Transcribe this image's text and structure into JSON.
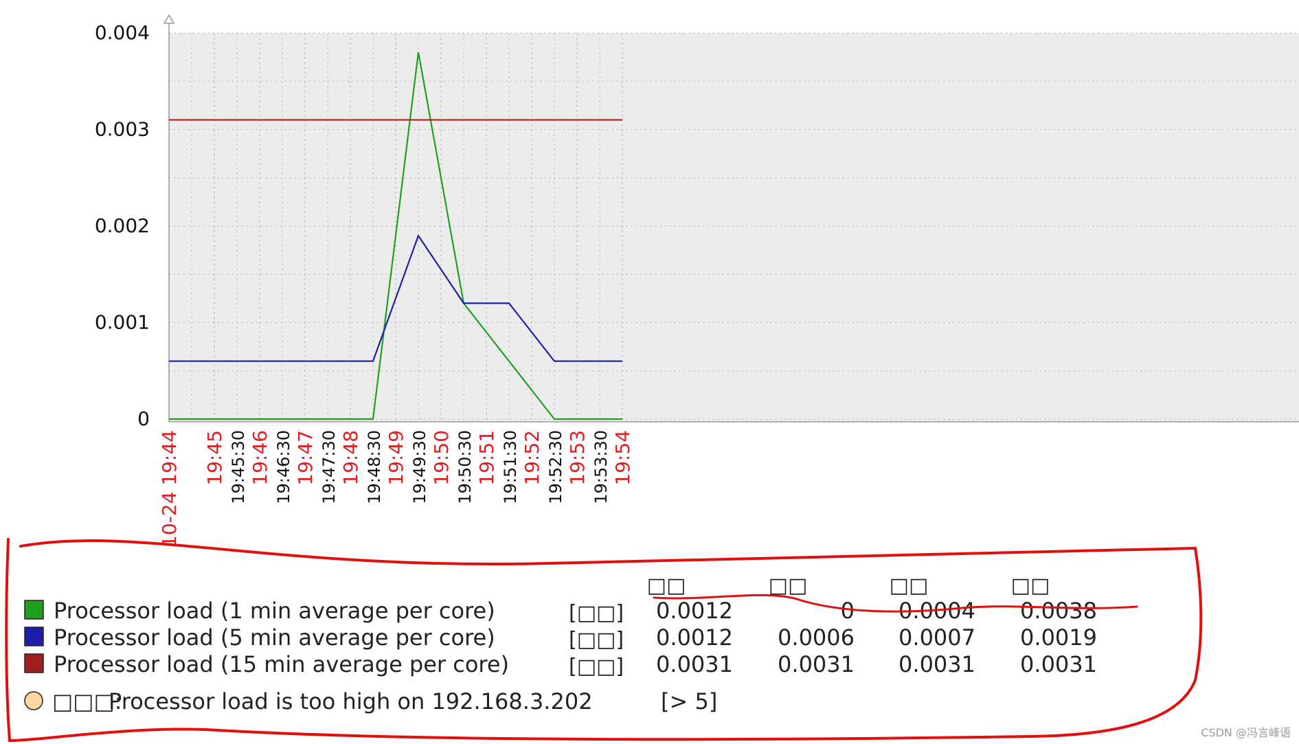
{
  "chart_data": {
    "type": "line",
    "title": "",
    "xlabel": "",
    "ylabel": "",
    "ylim": [
      0,
      0.004
    ],
    "y_ticks": [
      "0",
      "0.001",
      "0.002",
      "0.003",
      "0.004"
    ],
    "x_start": "19:44",
    "x_end": "19:54",
    "x_ticks": [
      {
        "label": "10-24 19:44",
        "t": "19:44:00",
        "style": "major"
      },
      {
        "label": "19:45",
        "t": "19:45:00",
        "style": "major"
      },
      {
        "label": "19:45:30",
        "t": "19:45:30",
        "style": "minor"
      },
      {
        "label": "19:46",
        "t": "19:46:00",
        "style": "major"
      },
      {
        "label": "19:46:30",
        "t": "19:46:30",
        "style": "minor"
      },
      {
        "label": "19:47",
        "t": "19:47:00",
        "style": "major"
      },
      {
        "label": "19:47:30",
        "t": "19:47:30",
        "style": "minor"
      },
      {
        "label": "19:48",
        "t": "19:48:00",
        "style": "major"
      },
      {
        "label": "19:48:30",
        "t": "19:48:30",
        "style": "minor"
      },
      {
        "label": "19:49",
        "t": "19:49:00",
        "style": "major"
      },
      {
        "label": "19:49:30",
        "t": "19:49:30",
        "style": "minor"
      },
      {
        "label": "19:50",
        "t": "19:50:00",
        "style": "major"
      },
      {
        "label": "19:50:30",
        "t": "19:50:30",
        "style": "minor"
      },
      {
        "label": "19:51",
        "t": "19:51:00",
        "style": "major"
      },
      {
        "label": "19:51:30",
        "t": "19:51:30",
        "style": "minor"
      },
      {
        "label": "19:52",
        "t": "19:52:00",
        "style": "major"
      },
      {
        "label": "19:52:30",
        "t": "19:52:30",
        "style": "minor"
      },
      {
        "label": "19:53",
        "t": "19:53:00",
        "style": "major"
      },
      {
        "label": "19:53:30",
        "t": "19:53:30",
        "style": "minor"
      },
      {
        "label": "19:54",
        "t": "19:54:00",
        "style": "major"
      }
    ],
    "series": [
      {
        "name": "Processor load (1 min average per core)",
        "color": "#1ea01e",
        "points": [
          {
            "t": "19:44:00",
            "y": 0
          },
          {
            "t": "19:48:30",
            "y": 0
          },
          {
            "t": "19:49:30",
            "y": 0.0038
          },
          {
            "t": "19:50:30",
            "y": 0.0012
          },
          {
            "t": "19:51:30",
            "y": 0.0006
          },
          {
            "t": "19:52:30",
            "y": 0
          },
          {
            "t": "19:54:00",
            "y": 0
          }
        ]
      },
      {
        "name": "Processor load (5 min average per core)",
        "color": "#1e1eaa",
        "points": [
          {
            "t": "19:44:00",
            "y": 0.0006
          },
          {
            "t": "19:48:30",
            "y": 0.0006
          },
          {
            "t": "19:49:30",
            "y": 0.0019
          },
          {
            "t": "19:50:30",
            "y": 0.0012
          },
          {
            "t": "19:51:30",
            "y": 0.0012
          },
          {
            "t": "19:52:30",
            "y": 0.0006
          },
          {
            "t": "19:54:00",
            "y": 0.0006
          }
        ]
      },
      {
        "name": "Processor load (15 min average per core)",
        "color": "#c0201e",
        "points": [
          {
            "t": "19:44:00",
            "y": 0.0031
          },
          {
            "t": "19:54:00",
            "y": 0.0031
          }
        ]
      }
    ],
    "legend": {
      "columns": [
        "□□",
        "□□",
        "□□",
        "□□"
      ],
      "rows": [
        {
          "swatch": "#1ea01e",
          "label": "Processor load (1 min average per core)",
          "func": "[□□]",
          "values": [
            "0.0012",
            "0",
            "0.0004",
            "0.0038"
          ]
        },
        {
          "swatch": "#1e1eaa",
          "label": "Processor load (5 min average per core)",
          "func": "[□□]",
          "values": [
            "0.0012",
            "0.0006",
            "0.0007",
            "0.0019"
          ]
        },
        {
          "swatch": "#a01e1e",
          "label": "Processor load (15 min average per core)",
          "func": "[□□]",
          "values": [
            "0.0031",
            "0.0031",
            "0.0031",
            "0.0031"
          ]
        }
      ],
      "trigger": {
        "marker_color": "#ffd8a0",
        "prefix": "□□□:",
        "text": "Processor load is too high on 192.168.3.202",
        "threshold": "[> 5]"
      }
    }
  },
  "watermark": "CSDN @冯言峰语",
  "annotation_color": "#e01010"
}
